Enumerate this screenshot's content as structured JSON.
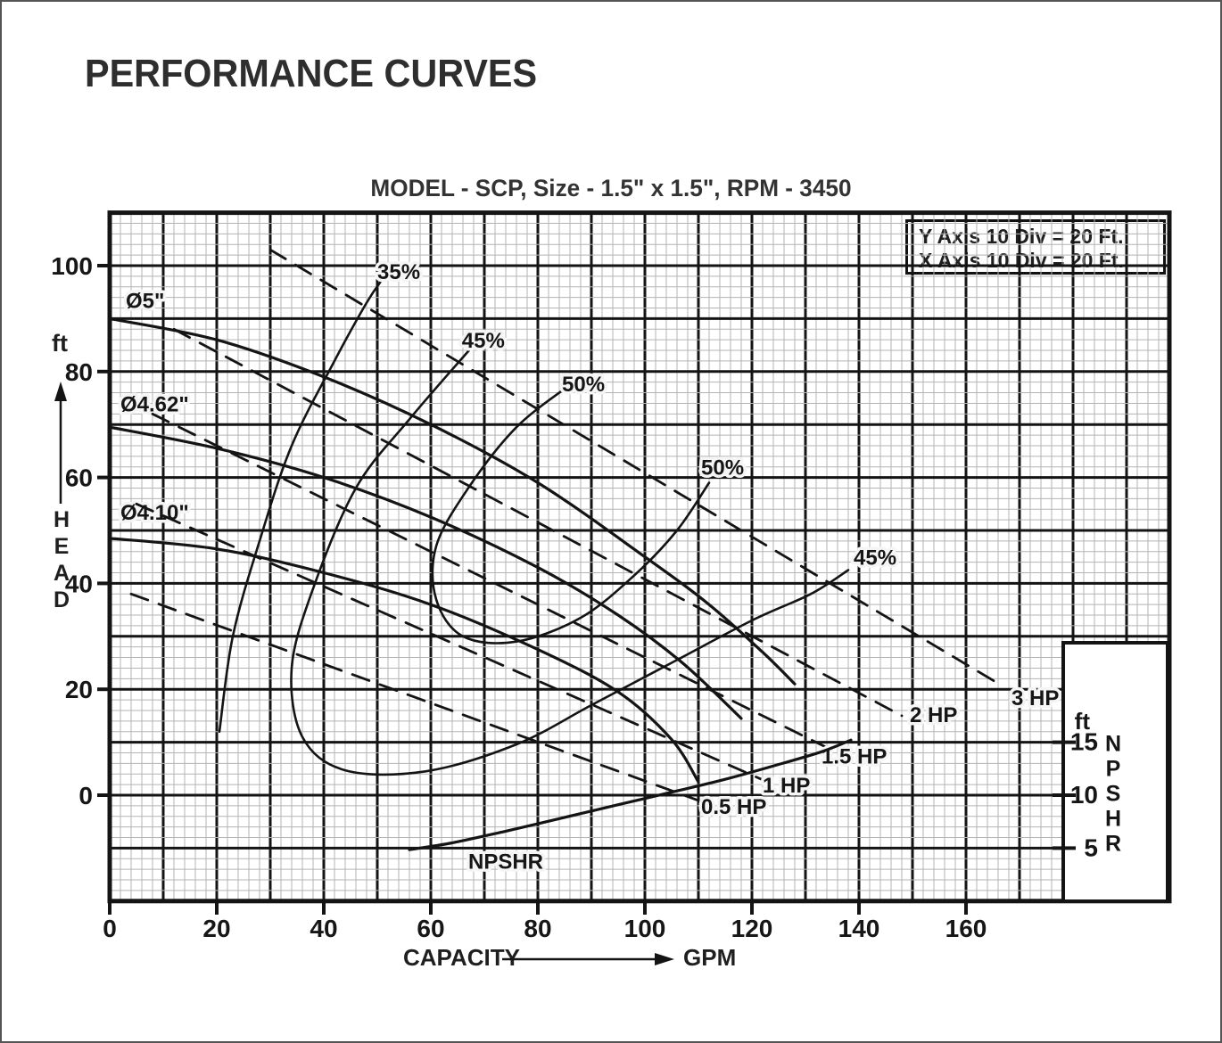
{
  "page": {
    "title": "PERFORMANCE CURVES",
    "subtitle": "MODEL - SCP, Size - 1.5\" x 1.5\", RPM - 3450"
  },
  "legend": {
    "lines": [
      "Y Axis 10 Div = 20 Ft.",
      "X Axis 10 Div = 20 Ft."
    ]
  },
  "axes": {
    "x": {
      "title": "CAPACITY",
      "unit": "GPM",
      "ticks": [
        0,
        20,
        40,
        60,
        80,
        100,
        120,
        140,
        160
      ]
    },
    "y": {
      "unit": "ft",
      "word": "HEAD",
      "ticks": [
        100,
        80,
        60,
        40,
        20,
        0
      ]
    },
    "npsh": {
      "unit": "ft",
      "word": "NPSHR",
      "ticks": [
        15,
        10,
        5
      ]
    }
  },
  "chart_data": {
    "type": "line",
    "title": "MODEL - SCP, Size - 1.5\" x 1.5\", RPM - 3450",
    "xlabel": "CAPACITY (GPM)",
    "ylabel": "HEAD (ft)",
    "x_range": [
      0,
      198
    ],
    "y_range": [
      -20,
      110
    ],
    "npsh_range": [
      0,
      20
    ],
    "grid": {
      "minor_div": 2,
      "major_div": 10,
      "note_y": "10 Div = 20 Ft",
      "note_x": "10 Div = 20 Ft"
    },
    "series": [
      {
        "id": "imp-5",
        "name": "Impeller Ø5\"",
        "kind": "head",
        "style": "solid",
        "w": 3.2,
        "points": [
          [
            0,
            90
          ],
          [
            20,
            86
          ],
          [
            40,
            79
          ],
          [
            60,
            70
          ],
          [
            80,
            59
          ],
          [
            100,
            45
          ],
          [
            112,
            36
          ],
          [
            122,
            27
          ],
          [
            128,
            21
          ]
        ],
        "label": {
          "text": "Ø5\"",
          "x": 3,
          "y": 92,
          "anchor": "start"
        }
      },
      {
        "id": "imp-462",
        "name": "Impeller Ø4.62\"",
        "kind": "head",
        "style": "solid",
        "w": 3.2,
        "points": [
          [
            0,
            69.5
          ],
          [
            20,
            65.5
          ],
          [
            40,
            60
          ],
          [
            60,
            52.5
          ],
          [
            80,
            43
          ],
          [
            95,
            34
          ],
          [
            107,
            25
          ],
          [
            118,
            14.5
          ]
        ],
        "label": {
          "text": "Ø4.62\"",
          "x": 2,
          "y": 72.5,
          "anchor": "start"
        }
      },
      {
        "id": "imp-410",
        "name": "Impeller Ø4.10\"",
        "kind": "head",
        "style": "solid",
        "w": 3.2,
        "points": [
          [
            0,
            48.5
          ],
          [
            20,
            46.5
          ],
          [
            40,
            42
          ],
          [
            60,
            36
          ],
          [
            80,
            27.5
          ],
          [
            95,
            19.5
          ],
          [
            105,
            10.5
          ],
          [
            110,
            2.5
          ]
        ],
        "label": {
          "text": "Ø4.10\"",
          "x": 2,
          "y": 52,
          "anchor": "start"
        }
      },
      {
        "id": "eff-35",
        "name": "Efficiency 35%",
        "kind": "efficiency",
        "style": "solid",
        "w": 2.6,
        "points": [
          [
            20.5,
            12
          ],
          [
            23,
            30
          ],
          [
            28,
            48
          ],
          [
            34,
            66
          ],
          [
            42,
            82
          ],
          [
            48,
            93
          ],
          [
            51,
            97.5
          ]
        ],
        "label": {
          "text": "35%",
          "x": 50,
          "y": 97.5,
          "anchor": "start"
        }
      },
      {
        "id": "eff-45",
        "name": "Efficiency 45%",
        "kind": "efficiency",
        "style": "solid",
        "w": 2.6,
        "points": [
          [
            68,
            85
          ],
          [
            56,
            71
          ],
          [
            46,
            58
          ],
          [
            38,
            39
          ],
          [
            34,
            24
          ],
          [
            36,
            11
          ],
          [
            44,
            4.7
          ],
          [
            59,
            4.5
          ],
          [
            76,
            9.6
          ],
          [
            90,
            17
          ],
          [
            105,
            25
          ],
          [
            120,
            33
          ],
          [
            131,
            38
          ],
          [
            138,
            42.5
          ]
        ],
        "label": {
          "text": "45%",
          "x": 65.8,
          "y": 84.5,
          "anchor": "start"
        },
        "label2": {
          "text": "45%",
          "x": 139,
          "y": 43.5,
          "anchor": "start"
        }
      },
      {
        "id": "eff-50",
        "name": "Efficiency 50%",
        "kind": "efficiency",
        "style": "solid",
        "w": 2.6,
        "points": [
          [
            86,
            77.5
          ],
          [
            76,
            69.5
          ],
          [
            67,
            58
          ],
          [
            61,
            47
          ],
          [
            61,
            37
          ],
          [
            66,
            30
          ],
          [
            76,
            29
          ],
          [
            88,
            33.5
          ],
          [
            98,
            41.5
          ],
          [
            106,
            50
          ],
          [
            112,
            59
          ]
        ],
        "label": {
          "text": "50%",
          "x": 84.5,
          "y": 76.3,
          "anchor": "start"
        },
        "label2": {
          "text": "50%",
          "x": 110.5,
          "y": 60.5,
          "anchor": "start"
        }
      },
      {
        "id": "hp-05",
        "name": "0.5 HP power line",
        "kind": "power",
        "style": "dashed",
        "w": 2.8,
        "points": [
          [
            4,
            38
          ],
          [
            110,
            -1
          ]
        ],
        "label": {
          "text": "0.5 HP",
          "x": 110.5,
          "y": -3.5,
          "anchor": "start"
        }
      },
      {
        "id": "hp-1",
        "name": "1 HP power line",
        "kind": "power",
        "style": "dashed",
        "w": 2.8,
        "points": [
          [
            5,
            55
          ],
          [
            124,
            2
          ]
        ],
        "label": {
          "text": "1 HP",
          "x": 122,
          "y": 0.5,
          "anchor": "start"
        }
      },
      {
        "id": "hp-15",
        "name": "1.5 HP power line",
        "kind": "power",
        "style": "dashed",
        "w": 2.8,
        "points": [
          [
            8,
            72
          ],
          [
            136,
            8
          ]
        ],
        "label": {
          "text": "1.5 HP",
          "x": 133,
          "y": 6,
          "anchor": "start"
        }
      },
      {
        "id": "hp-2",
        "name": "2 HP power line",
        "kind": "power",
        "style": "dashed",
        "w": 2.8,
        "points": [
          [
            12,
            88
          ],
          [
            148,
            15
          ]
        ],
        "label": {
          "text": "2 HP",
          "x": 149.5,
          "y": 13.8,
          "anchor": "start"
        }
      },
      {
        "id": "hp-3",
        "name": "3 HP power line",
        "kind": "power",
        "style": "dashed",
        "w": 2.8,
        "points": [
          [
            30,
            103
          ],
          [
            167,
            20.5
          ]
        ],
        "label": {
          "text": "3 HP",
          "x": 168.5,
          "y": 17,
          "anchor": "start"
        }
      },
      {
        "id": "npshr",
        "name": "NPSHR curve",
        "kind": "npshr",
        "scale": "npsh",
        "style": "solid",
        "w": 3.2,
        "points": [
          [
            56,
            4.85
          ],
          [
            64,
            5.5
          ],
          [
            74,
            6.6
          ],
          [
            85,
            7.9
          ],
          [
            95,
            9.1
          ],
          [
            106,
            10.4
          ],
          [
            115,
            11.5
          ],
          [
            125,
            12.9
          ],
          [
            133,
            14.1
          ],
          [
            138.5,
            15.2
          ]
        ],
        "label": {
          "text": "NPSHR",
          "x": 74,
          "y": 3.05,
          "anchor": "middle"
        }
      }
    ]
  }
}
